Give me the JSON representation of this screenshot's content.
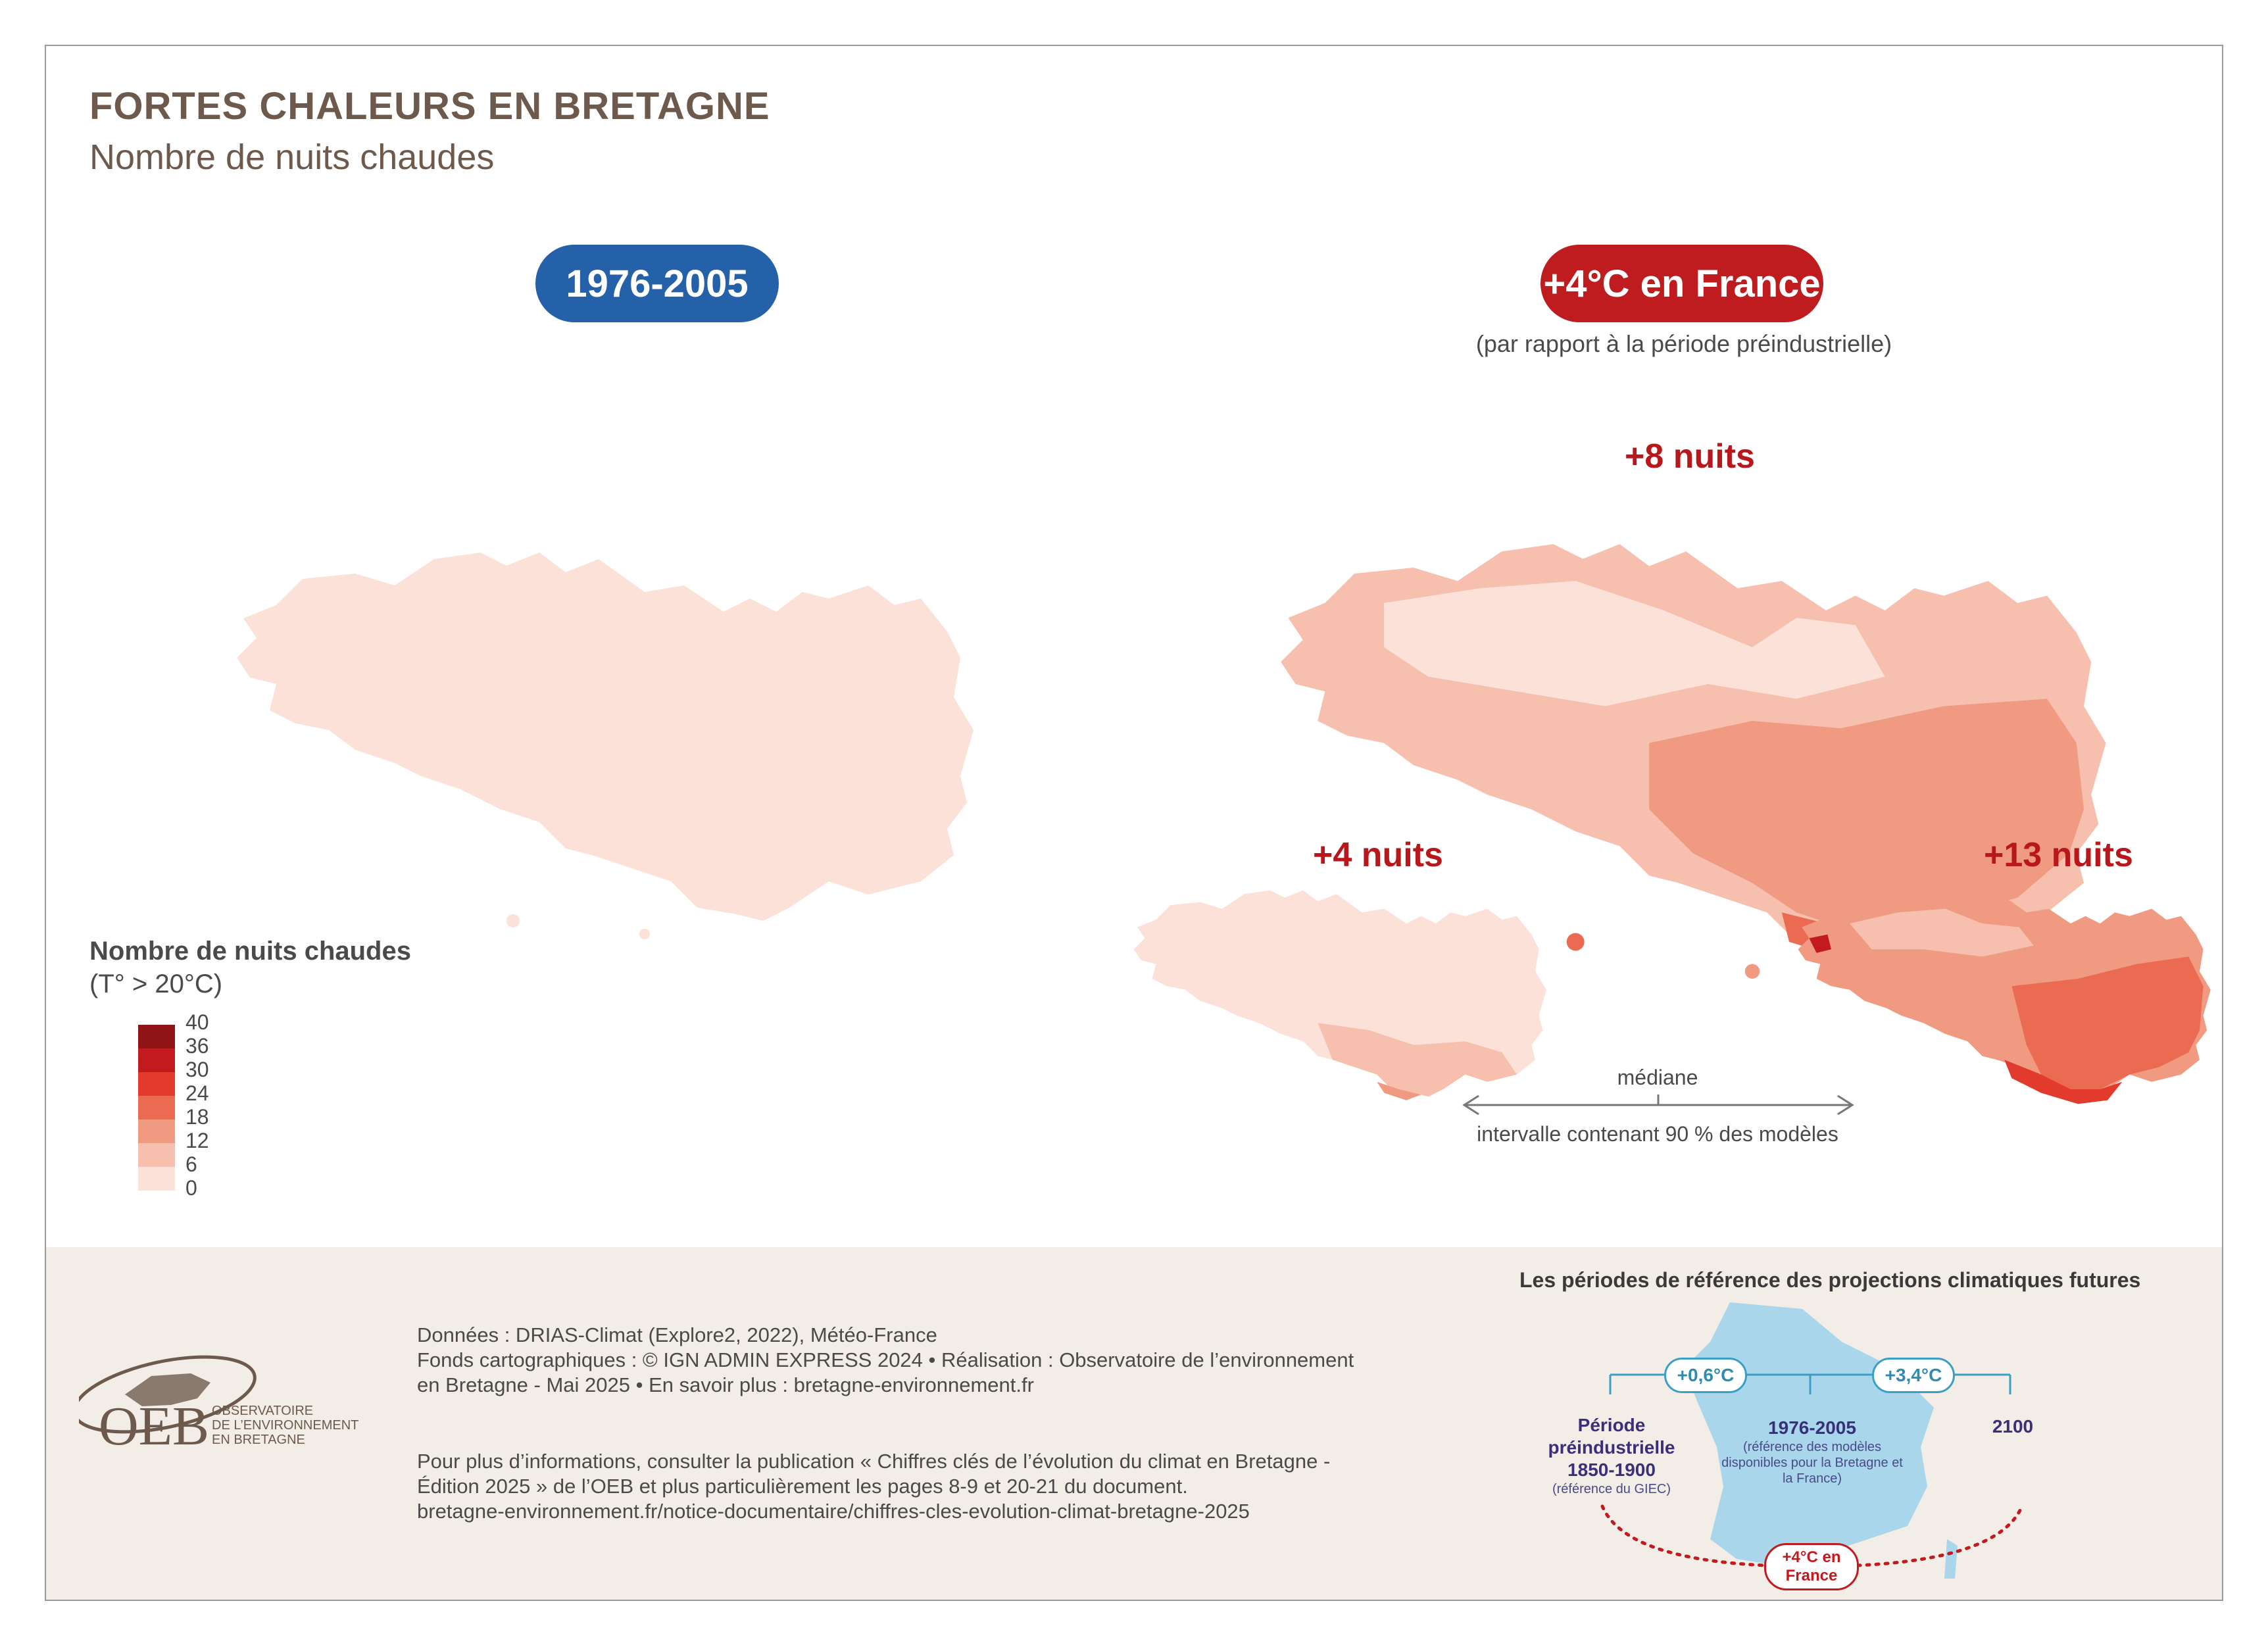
{
  "header": {
    "title": "FORTES CHALEURS EN BRETAGNE",
    "subtitle": "Nombre de nuits chaudes"
  },
  "maps": {
    "historical": {
      "label": "1976-2005",
      "color": "#2461a8"
    },
    "future": {
      "label": "+4°C en France",
      "note": "(par rapport à la période préindustrielle)",
      "color": "#bf1c1f",
      "median_label": "+8 nuits",
      "low_label": "+4 nuits",
      "high_label": "+13 nuits"
    },
    "explanation": {
      "median": "médiane",
      "interval": "intervalle contenant 90 % des modèles"
    }
  },
  "legend": {
    "title": "Nombre de nuits chaudes",
    "subtitle": "(T° > 20°C)",
    "breaks": [
      "40",
      "36",
      "30",
      "24",
      "18",
      "12",
      "6",
      "0"
    ],
    "colors": [
      "#8e1416",
      "#c21a1e",
      "#e23b2e",
      "#ea6b51",
      "#f09a82",
      "#f6bfae",
      "#fbe1d8"
    ]
  },
  "footer": {
    "credits_line1": "Données : DRIAS-Climat (Explore2, 2022), Météo-France",
    "credits_line2": "Fonds cartographiques : © IGN ADMIN EXPRESS 2024 • Réalisation : Observatoire de l’environnement",
    "credits_line3": "en Bretagne - Mai 2025  • En savoir plus : bretagne-environnement.fr",
    "info_line1": "Pour plus d’informations, consulter la publication « Chiffres clés de l’évolution du climat en Bretagne -",
    "info_line2": "Édition 2025 » de l’OEB et plus particulièrement les pages 8-9 et 20-21 du document.",
    "info_line3": "bretagne-environnement.fr/notice-documentaire/chiffres-cles-evolution-climat-bretagne-2025",
    "logo_text": "OEB",
    "logo_caption": [
      "OBSERVATOIRE",
      "DE L’ENVIRONNEMENT",
      "EN BRETAGNE"
    ]
  },
  "reference_periods": {
    "title": "Les périodes de référence des projections climatiques futures",
    "delta1": "+0,6°C",
    "delta2": "+3,4°C",
    "preindustrial": {
      "label": "Période préindustrielle",
      "years": "1850-1900",
      "note": "(référence du GIEC)"
    },
    "baseline": {
      "years": "1976-2005",
      "note": "(référence des modèles disponibles pour la Bretagne et la France)"
    },
    "end": "2100",
    "warming": "+4°C en France"
  }
}
